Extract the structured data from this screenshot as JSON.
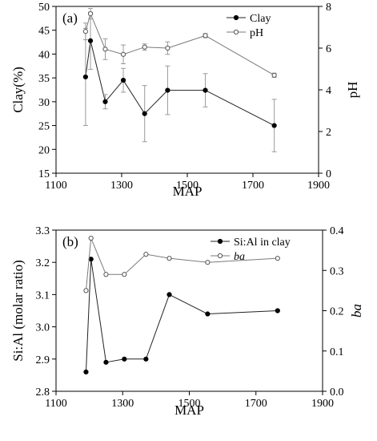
{
  "chart_data": [
    {
      "type": "line",
      "panel_label": "(a)",
      "xlabel": "MAP",
      "ylabel": "Clay(%)",
      "y2label": "pH",
      "xlim": [
        1100,
        1900
      ],
      "ylim": [
        15,
        50
      ],
      "y2lim": [
        0,
        8
      ],
      "xticks": [
        1100,
        1300,
        1500,
        1700,
        1900
      ],
      "yticks": [
        15,
        20,
        25,
        30,
        35,
        40,
        45,
        50
      ],
      "y2ticks": [
        0,
        2,
        4,
        6,
        8
      ],
      "legend_position": "top-right",
      "x": [
        1190,
        1205,
        1250,
        1305,
        1370,
        1440,
        1555,
        1765
      ],
      "series": [
        {
          "name": "Clay",
          "axis": "left",
          "marker": "filled",
          "values": [
            35.2,
            42.8,
            30.0,
            34.5,
            27.5,
            32.4,
            32.4,
            25.0
          ],
          "error": [
            10.2,
            6.0,
            1.5,
            2.5,
            5.9,
            5.1,
            3.5,
            5.5
          ]
        },
        {
          "name": "pH",
          "axis": "right",
          "marker": "open",
          "values": [
            6.8,
            7.65,
            5.95,
            5.7,
            6.05,
            6.0,
            6.6,
            4.7
          ],
          "error": [
            0.4,
            0.25,
            0.5,
            0.45,
            0.15,
            0.3,
            0.1,
            0.1
          ]
        }
      ]
    },
    {
      "type": "line",
      "panel_label": "(b)",
      "xlabel": "MAP",
      "ylabel": "Si:Al (molar ratio)",
      "y2label": "ba",
      "xlim": [
        1100,
        1900
      ],
      "ylim": [
        2.8,
        3.3
      ],
      "y2lim": [
        0.0,
        0.4
      ],
      "xticks": [
        1100,
        1300,
        1500,
        1700,
        1900
      ],
      "yticks": [
        "2.8",
        "2.9",
        "3.0",
        "3.1",
        "3.2",
        "3.3"
      ],
      "y2ticks": [
        "0.0",
        "0.1",
        "0.2",
        "0.3",
        "0.4"
      ],
      "legend_position": "top-right",
      "x": [
        1190,
        1205,
        1250,
        1305,
        1370,
        1440,
        1555,
        1765
      ],
      "series": [
        {
          "name": "Si:Al in clay",
          "axis": "left",
          "marker": "filled",
          "values": [
            2.86,
            3.21,
            2.89,
            2.9,
            2.9,
            3.1,
            3.04,
            3.05
          ]
        },
        {
          "name": "ba",
          "axis": "right",
          "marker": "open",
          "values": [
            0.25,
            0.38,
            0.29,
            0.29,
            0.34,
            0.33,
            0.32,
            0.33
          ]
        }
      ]
    }
  ]
}
